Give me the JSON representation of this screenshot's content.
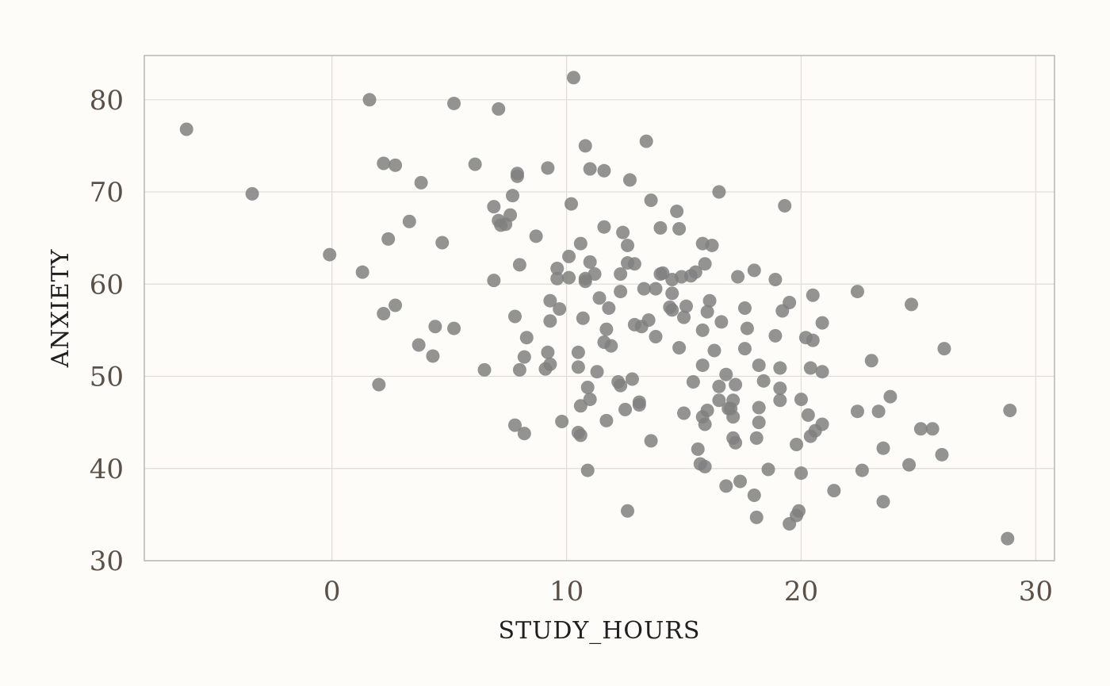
{
  "chart_data": {
    "type": "scatter",
    "xlabel": "STUDY_HOURS",
    "ylabel": "ANXIETY",
    "xlim": [
      -8,
      30.8
    ],
    "ylim": [
      30,
      84.8
    ],
    "xticks": [
      0,
      10,
      20,
      30
    ],
    "yticks": [
      30,
      40,
      50,
      60,
      70,
      80
    ],
    "xtick_labels": [
      "0",
      "10",
      "20",
      "30"
    ],
    "ytick_labels": [
      "30",
      "40",
      "50",
      "60",
      "70",
      "80"
    ],
    "grid": true,
    "point_color": "#808080",
    "points": [
      [
        -6.2,
        76.8
      ],
      [
        -3.4,
        69.8
      ],
      [
        -0.1,
        63.2
      ],
      [
        1.3,
        61.3
      ],
      [
        1.6,
        80.0
      ],
      [
        2.0,
        49.1
      ],
      [
        2.2,
        73.1
      ],
      [
        2.2,
        56.8
      ],
      [
        2.4,
        64.9
      ],
      [
        2.7,
        72.9
      ],
      [
        2.7,
        57.7
      ],
      [
        3.3,
        66.8
      ],
      [
        3.7,
        53.4
      ],
      [
        3.8,
        71.0
      ],
      [
        4.3,
        52.2
      ],
      [
        4.4,
        55.4
      ],
      [
        4.7,
        64.5
      ],
      [
        5.2,
        55.2
      ],
      [
        5.2,
        79.6
      ],
      [
        6.1,
        73.0
      ],
      [
        6.5,
        50.7
      ],
      [
        6.9,
        60.4
      ],
      [
        6.9,
        68.4
      ],
      [
        7.1,
        79.0
      ],
      [
        7.1,
        66.9
      ],
      [
        7.2,
        66.4
      ],
      [
        7.4,
        66.5
      ],
      [
        7.6,
        67.5
      ],
      [
        7.7,
        69.6
      ],
      [
        7.8,
        56.5
      ],
      [
        7.8,
        44.7
      ],
      [
        7.9,
        71.7
      ],
      [
        7.9,
        72.0
      ],
      [
        8.0,
        50.7
      ],
      [
        8.0,
        62.1
      ],
      [
        8.2,
        43.8
      ],
      [
        8.2,
        52.1
      ],
      [
        8.3,
        54.2
      ],
      [
        8.7,
        65.2
      ],
      [
        9.1,
        50.8
      ],
      [
        9.2,
        72.6
      ],
      [
        9.2,
        52.6
      ],
      [
        9.3,
        56.0
      ],
      [
        9.3,
        58.2
      ],
      [
        9.3,
        51.3
      ],
      [
        9.6,
        60.6
      ],
      [
        9.6,
        61.7
      ],
      [
        9.7,
        57.3
      ],
      [
        9.8,
        45.1
      ],
      [
        10.1,
        63.0
      ],
      [
        10.1,
        60.7
      ],
      [
        10.2,
        68.7
      ],
      [
        10.3,
        82.4
      ],
      [
        10.5,
        52.6
      ],
      [
        10.5,
        51.0
      ],
      [
        10.5,
        43.9
      ],
      [
        10.6,
        46.8
      ],
      [
        10.6,
        64.4
      ],
      [
        10.6,
        43.6
      ],
      [
        10.7,
        56.3
      ],
      [
        10.8,
        75.0
      ],
      [
        10.8,
        60.6
      ],
      [
        10.8,
        60.3
      ],
      [
        10.9,
        48.8
      ],
      [
        10.9,
        39.8
      ],
      [
        11.0,
        47.5
      ],
      [
        11.0,
        62.4
      ],
      [
        11.0,
        72.5
      ],
      [
        11.2,
        61.1
      ],
      [
        11.3,
        50.5
      ],
      [
        11.4,
        58.5
      ],
      [
        11.6,
        66.2
      ],
      [
        11.6,
        53.7
      ],
      [
        11.6,
        72.3
      ],
      [
        11.7,
        55.1
      ],
      [
        11.7,
        45.2
      ],
      [
        11.8,
        57.4
      ],
      [
        11.9,
        53.3
      ],
      [
        12.2,
        49.4
      ],
      [
        12.3,
        49.0
      ],
      [
        12.3,
        59.2
      ],
      [
        12.3,
        61.1
      ],
      [
        12.4,
        65.6
      ],
      [
        12.5,
        46.4
      ],
      [
        12.6,
        35.4
      ],
      [
        12.6,
        64.2
      ],
      [
        12.6,
        62.3
      ],
      [
        12.7,
        71.3
      ],
      [
        12.8,
        49.7
      ],
      [
        12.9,
        55.6
      ],
      [
        12.9,
        62.2
      ],
      [
        13.1,
        47.2
      ],
      [
        13.1,
        46.9
      ],
      [
        13.2,
        55.4
      ],
      [
        13.3,
        59.5
      ],
      [
        13.4,
        75.5
      ],
      [
        13.5,
        56.1
      ],
      [
        13.6,
        69.1
      ],
      [
        13.6,
        43.0
      ],
      [
        13.8,
        59.5
      ],
      [
        13.8,
        54.3
      ],
      [
        14.0,
        66.1
      ],
      [
        14.0,
        61.1
      ],
      [
        14.1,
        61.2
      ],
      [
        14.4,
        57.5
      ],
      [
        14.5,
        59.0
      ],
      [
        14.5,
        57.2
      ],
      [
        14.5,
        60.5
      ],
      [
        14.7,
        67.9
      ],
      [
        14.8,
        66.0
      ],
      [
        14.8,
        53.1
      ],
      [
        14.9,
        60.8
      ],
      [
        15.0,
        56.4
      ],
      [
        15.0,
        46.0
      ],
      [
        15.1,
        57.6
      ],
      [
        15.3,
        60.9
      ],
      [
        15.4,
        49.4
      ],
      [
        15.5,
        61.3
      ],
      [
        15.6,
        42.1
      ],
      [
        15.7,
        40.5
      ],
      [
        15.8,
        45.6
      ],
      [
        15.8,
        51.2
      ],
      [
        15.8,
        55.0
      ],
      [
        15.8,
        64.4
      ],
      [
        15.9,
        44.8
      ],
      [
        15.9,
        40.2
      ],
      [
        15.9,
        62.2
      ],
      [
        16.0,
        46.3
      ],
      [
        16.0,
        57.0
      ],
      [
        16.1,
        58.2
      ],
      [
        16.2,
        64.2
      ],
      [
        16.3,
        52.8
      ],
      [
        16.5,
        70.0
      ],
      [
        16.5,
        48.9
      ],
      [
        16.5,
        47.4
      ],
      [
        16.6,
        55.9
      ],
      [
        16.8,
        38.1
      ],
      [
        16.8,
        50.2
      ],
      [
        16.9,
        46.5
      ],
      [
        17.0,
        46.5
      ],
      [
        17.1,
        45.6
      ],
      [
        17.1,
        43.3
      ],
      [
        17.1,
        47.4
      ],
      [
        17.2,
        42.8
      ],
      [
        17.2,
        49.1
      ],
      [
        17.3,
        60.8
      ],
      [
        17.4,
        38.6
      ],
      [
        17.6,
        57.4
      ],
      [
        17.6,
        53.0
      ],
      [
        17.7,
        55.2
      ],
      [
        18.0,
        37.1
      ],
      [
        18.0,
        61.5
      ],
      [
        18.1,
        34.7
      ],
      [
        18.1,
        43.3
      ],
      [
        18.2,
        46.6
      ],
      [
        18.2,
        45.0
      ],
      [
        18.2,
        51.2
      ],
      [
        18.4,
        49.5
      ],
      [
        18.6,
        39.9
      ],
      [
        18.9,
        60.5
      ],
      [
        18.9,
        54.4
      ],
      [
        19.1,
        50.9
      ],
      [
        19.1,
        48.7
      ],
      [
        19.1,
        47.4
      ],
      [
        19.2,
        57.1
      ],
      [
        19.3,
        68.5
      ],
      [
        19.5,
        34.0
      ],
      [
        19.5,
        58.0
      ],
      [
        19.8,
        42.6
      ],
      [
        19.8,
        34.9
      ],
      [
        19.9,
        35.4
      ],
      [
        20.0,
        47.5
      ],
      [
        20.0,
        39.5
      ],
      [
        20.2,
        54.2
      ],
      [
        20.3,
        45.8
      ],
      [
        20.4,
        43.5
      ],
      [
        20.4,
        50.9
      ],
      [
        20.5,
        53.9
      ],
      [
        20.5,
        58.8
      ],
      [
        20.6,
        44.1
      ],
      [
        20.9,
        50.5
      ],
      [
        20.9,
        55.8
      ],
      [
        20.9,
        44.8
      ],
      [
        21.4,
        37.6
      ],
      [
        22.4,
        46.2
      ],
      [
        22.4,
        59.2
      ],
      [
        22.6,
        39.8
      ],
      [
        23.0,
        51.7
      ],
      [
        23.3,
        46.2
      ],
      [
        23.5,
        36.4
      ],
      [
        23.5,
        42.2
      ],
      [
        23.8,
        47.8
      ],
      [
        24.6,
        40.4
      ],
      [
        24.7,
        57.8
      ],
      [
        25.1,
        44.3
      ],
      [
        25.6,
        44.3
      ],
      [
        26.0,
        41.5
      ],
      [
        26.1,
        53.0
      ],
      [
        28.8,
        32.4
      ],
      [
        28.9,
        46.3
      ]
    ]
  }
}
